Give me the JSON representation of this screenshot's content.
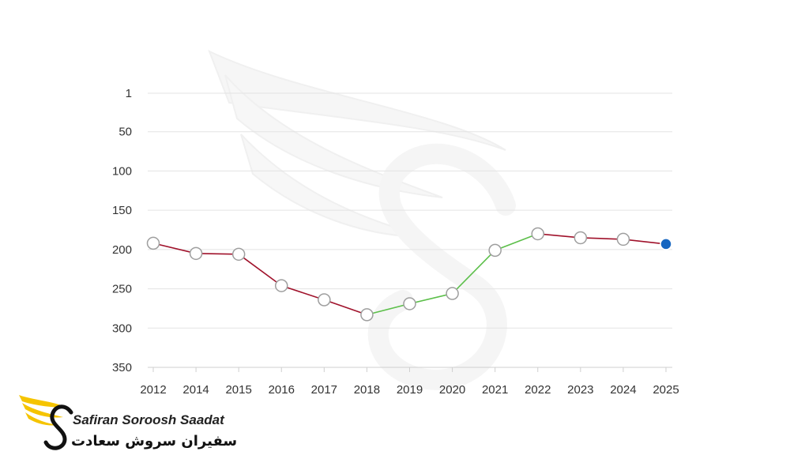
{
  "chart_data": {
    "type": "line",
    "x": [
      "2012",
      "2014",
      "2015",
      "2016",
      "2017",
      "2018",
      "2019",
      "2020",
      "2021",
      "2022",
      "2023",
      "2024",
      "2025"
    ],
    "values": [
      192,
      205,
      206,
      246,
      264,
      283,
      269,
      256,
      201,
      180,
      185,
      187,
      193
    ],
    "y_ticks": [
      1,
      50,
      100,
      150,
      200,
      250,
      300,
      350
    ],
    "ylim": [
      1,
      350
    ],
    "y_inverted": true,
    "grid": true,
    "colors": {
      "decline": "#a0122b",
      "rise": "#5cbf4a",
      "last_point": "#1565c0",
      "point_fill": "#ffffff",
      "point_stroke": "#9e9e9e"
    }
  },
  "logo": {
    "name_en": "Safiran Soroosh Saadat",
    "name_fa": "سفیران سروش سعادت",
    "icon": "winged-s-logo-icon",
    "colors": {
      "wing": "#f5c400",
      "letter": "#111111"
    }
  }
}
